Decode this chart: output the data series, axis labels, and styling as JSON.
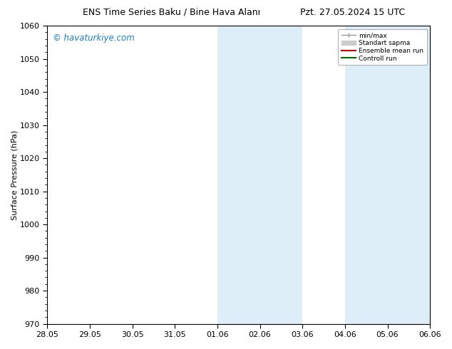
{
  "title_left": "ENS Time Series Baku / Bine Hava Alanı",
  "title_right": "Pzt. 27.05.2024 15 UTC",
  "ylabel": "Surface Pressure (hPa)",
  "ylim": [
    970,
    1060
  ],
  "yticks": [
    970,
    980,
    990,
    1000,
    1010,
    1020,
    1030,
    1040,
    1050,
    1060
  ],
  "xtick_positions": [
    0,
    1,
    2,
    3,
    4,
    5,
    6,
    7,
    8,
    9
  ],
  "xtick_labels": [
    "28.05",
    "29.05",
    "30.05",
    "31.05",
    "01.06",
    "02.06",
    "03.06",
    "04.06",
    "05.06",
    "06.06"
  ],
  "xlim": [
    0,
    9
  ],
  "shaded_regions": [
    {
      "start": 4,
      "end": 6,
      "color": "#ddeef8"
    },
    {
      "start": 7,
      "end": 9,
      "color": "#ddeef8"
    }
  ],
  "watermark_text": "© havaturkiye.com",
  "watermark_color": "#1a7bbf",
  "legend_items": [
    {
      "label": "min/max",
      "color": "#999999",
      "lw": 1.0
    },
    {
      "label": "Standart sapma",
      "color": "#cccccc",
      "lw": 6.0
    },
    {
      "label": "Ensemble mean run",
      "color": "#cc0000",
      "lw": 1.5
    },
    {
      "label": "Controll run",
      "color": "#006600",
      "lw": 1.5
    }
  ],
  "bg_color": "#ffffff",
  "grid_color": "#dddddd",
  "spine_color": "#000000",
  "tick_color": "#000000",
  "title_fontsize": 9,
  "ylabel_fontsize": 8,
  "tick_fontsize": 8,
  "watermark_fontsize": 8.5
}
